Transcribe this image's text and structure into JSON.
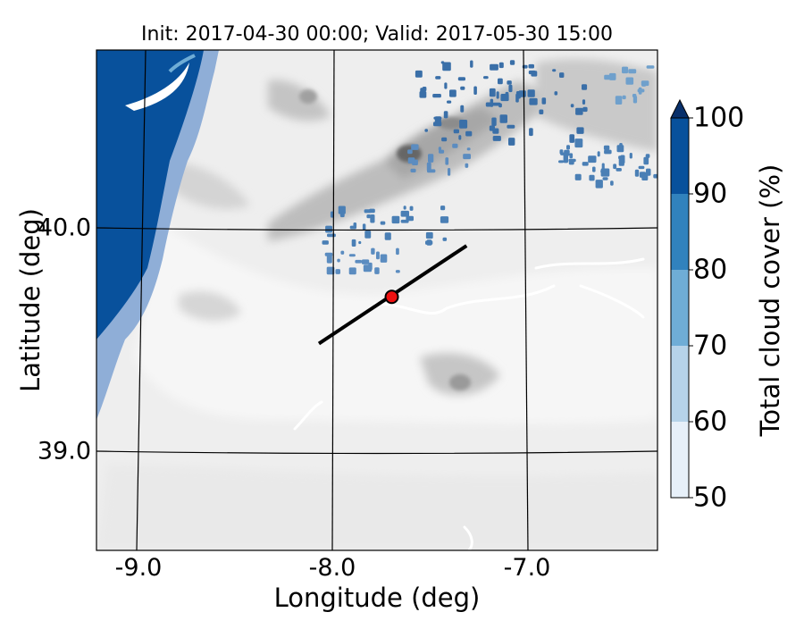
{
  "title": "Init: 2017-04-30 00:00; Valid: 2017-05-30 15:00",
  "x_axis": {
    "label": "Longitude (deg)",
    "ticks": [
      "-9.0",
      "-8.0",
      "-7.0"
    ]
  },
  "y_axis": {
    "label": "Latitude (deg)",
    "ticks": [
      "40.0",
      "39.0"
    ]
  },
  "colorbar": {
    "label": "Total cloud cover (%)",
    "ticks": [
      "50",
      "60",
      "70",
      "80",
      "90",
      "100"
    ],
    "levels": [
      50,
      60,
      70,
      80,
      90,
      100
    ],
    "colors": [
      "#e7f0f9",
      "#b6d3e9",
      "#6fadd6",
      "#3182bd",
      "#08519c",
      "#08306b"
    ],
    "extend": "max"
  },
  "map": {
    "lon_range": [
      -9.25,
      -6.4
    ],
    "lat_range": [
      38.55,
      40.8
    ],
    "graticule_lons": [
      -9.0,
      -8.0,
      -7.0
    ],
    "graticule_lats": [
      40.0,
      39.0
    ],
    "ocean_color": "#08519c",
    "land_shading": "grayscale terrain contours",
    "cross_section": {
      "start": [
        -8.12,
        39.48
      ],
      "end": [
        -7.37,
        39.92
      ]
    },
    "point": {
      "lon": -7.75,
      "lat": 39.69,
      "color": "#ee1111"
    }
  }
}
